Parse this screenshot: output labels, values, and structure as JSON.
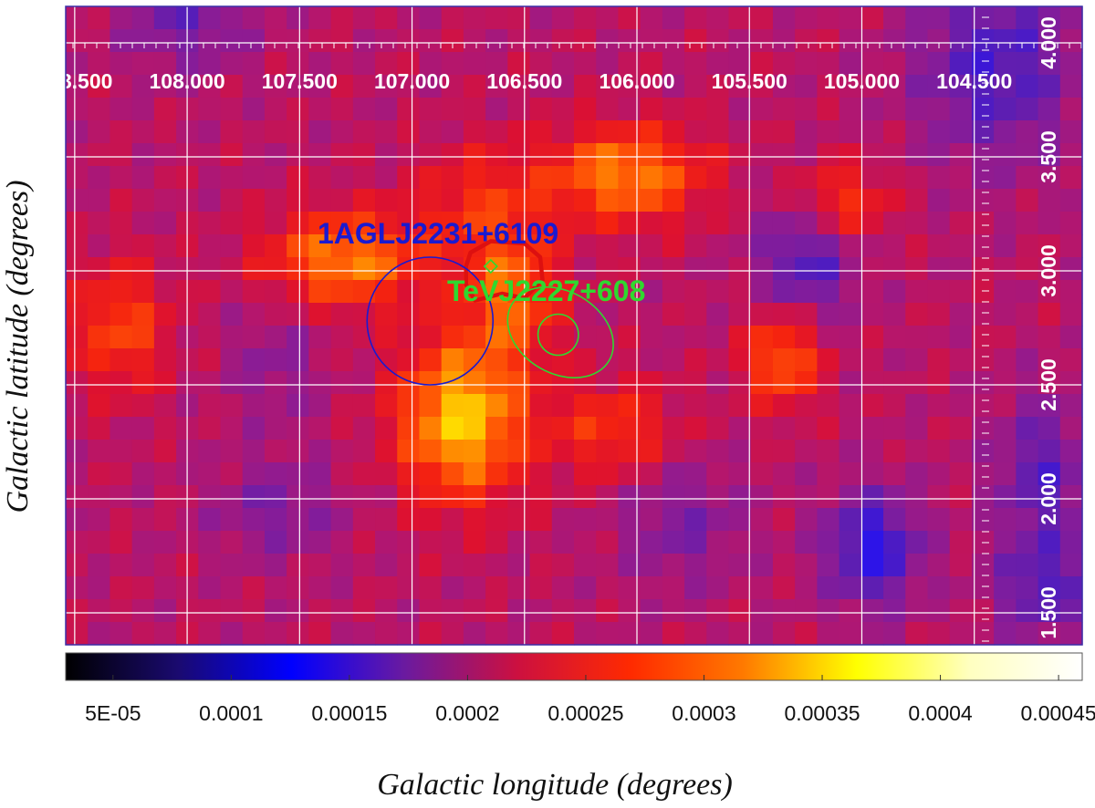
{
  "chart_data": {
    "type": "heatmap",
    "title": "",
    "xlabel": "Galactic longitude (degrees)",
    "ylabel": "Galactic latitude (degrees)",
    "x_ticks": [
      108.5,
      108.0,
      107.5,
      107.0,
      106.5,
      106.0,
      105.5,
      105.0,
      104.5
    ],
    "x_tick_labels": [
      "108.500",
      "108.000",
      "107.500",
      "107.000",
      "106.500",
      "106.000",
      "105.500",
      "105.000",
      "104.500"
    ],
    "y_ticks": [
      1.5,
      2.0,
      2.5,
      3.0,
      3.5,
      4.0
    ],
    "y_tick_labels": [
      "1.500",
      "2.000",
      "2.500",
      "3.000",
      "3.500",
      "4.000"
    ],
    "xlim": [
      108.54,
      104.02
    ],
    "ylim": [
      1.36,
      4.16
    ],
    "grid": true,
    "grid_color": "#ffffff",
    "frame_color": "#3b2fa8",
    "colorbar": {
      "range": [
        3e-05,
        0.00046
      ],
      "tick_values": [
        5e-05,
        0.0001,
        0.00015,
        0.0002,
        0.00025,
        0.0003,
        0.00035,
        0.0004,
        0.00045
      ],
      "tick_labels": [
        "5E-05",
        "0.0001",
        "0.00015",
        "0.0002",
        "0.00025",
        "0.0003",
        "0.00035",
        "0.0004",
        "0.00045"
      ],
      "stops": [
        "#000000",
        "#1a0a70",
        "#0000ff",
        "#6a1aa0",
        "#cc1040",
        "#ff2a00",
        "#ff7a00",
        "#ffff00",
        "#ffffc0",
        "#ffffff"
      ]
    },
    "color_scale": {
      "value_range": [
        0.00013,
        0.00036
      ],
      "stops": [
        "#2d14e8",
        "#5a1eb4",
        "#8a1c96",
        "#b4166e",
        "#dc1032",
        "#f5230f",
        "#ff5a05",
        "#ffa000",
        "#ffdc00"
      ]
    },
    "background_value": 0.00022,
    "field_blobs": [
      {
        "l": 106.78,
        "b": 2.35,
        "sigma_l": 0.2,
        "sigma_b": 0.25,
        "amp": 0.00013
      },
      {
        "l": 106.55,
        "b": 2.9,
        "sigma_l": 0.15,
        "sigma_b": 0.2,
        "amp": 8e-05
      },
      {
        "l": 107.3,
        "b": 3.05,
        "sigma_l": 0.25,
        "sigma_b": 0.15,
        "amp": 0.0001
      },
      {
        "l": 106.05,
        "b": 3.42,
        "sigma_l": 0.25,
        "sigma_b": 0.15,
        "amp": 0.0001
      },
      {
        "l": 106.7,
        "b": 3.3,
        "sigma_l": 0.2,
        "sigma_b": 0.18,
        "amp": 5e-05
      },
      {
        "l": 105.35,
        "b": 2.62,
        "sigma_l": 0.12,
        "sigma_b": 0.15,
        "amp": 9e-05
      },
      {
        "l": 105.1,
        "b": 3.3,
        "sigma_l": 0.15,
        "sigma_b": 0.12,
        "amp": 7e-05
      },
      {
        "l": 108.3,
        "b": 2.75,
        "sigma_l": 0.15,
        "sigma_b": 0.2,
        "amp": 7e-05
      },
      {
        "l": 106.1,
        "b": 2.3,
        "sigma_l": 0.2,
        "sigma_b": 0.15,
        "amp": 6e-05
      },
      {
        "l": 104.95,
        "b": 1.78,
        "sigma_l": 0.15,
        "sigma_b": 0.18,
        "amp": -9e-05
      },
      {
        "l": 104.2,
        "b": 2.1,
        "sigma_l": 0.15,
        "sigma_b": 0.25,
        "amp": -6e-05
      },
      {
        "l": 104.2,
        "b": 1.6,
        "sigma_l": 0.15,
        "sigma_b": 0.15,
        "amp": -6e-05
      },
      {
        "l": 105.25,
        "b": 3.05,
        "sigma_l": 0.15,
        "sigma_b": 0.2,
        "amp": -7e-05
      },
      {
        "l": 104.4,
        "b": 3.9,
        "sigma_l": 0.25,
        "sigma_b": 0.3,
        "amp": -7e-05
      },
      {
        "l": 108.0,
        "b": 4.1,
        "sigma_l": 0.2,
        "sigma_b": 0.15,
        "amp": -5e-05
      },
      {
        "l": 107.6,
        "b": 1.95,
        "sigma_l": 0.2,
        "sigma_b": 0.15,
        "amp": -4e-05
      },
      {
        "l": 107.6,
        "b": 2.6,
        "sigma_l": 0.15,
        "sigma_b": 0.2,
        "amp": -3e-05
      },
      {
        "l": 105.8,
        "b": 1.9,
        "sigma_l": 0.2,
        "sigma_b": 0.2,
        "amp": -4e-05
      }
    ],
    "sources": [
      {
        "name": "1AGLJ2231+6109",
        "color": "#1a1ad0",
        "center": [
          106.92,
          2.78
        ],
        "radius_deg": 0.28
      },
      {
        "name": "TeVJ2227+608",
        "color": "#2fd82f",
        "marker": "diamond",
        "marker_pos": [
          106.65,
          3.02
        ]
      }
    ],
    "annotations": {
      "tev_ellipse": {
        "color": "#2fd82f",
        "center": [
          106.34,
          2.73
        ],
        "semi_axes_deg": [
          0.25,
          0.18
        ],
        "rotation_deg": 30
      },
      "tev_small_circle": {
        "color": "#2fd82f",
        "center": [
          106.35,
          2.72
        ],
        "radius_deg": 0.09
      },
      "red_contour": {
        "color": "#dd1010"
      }
    }
  }
}
